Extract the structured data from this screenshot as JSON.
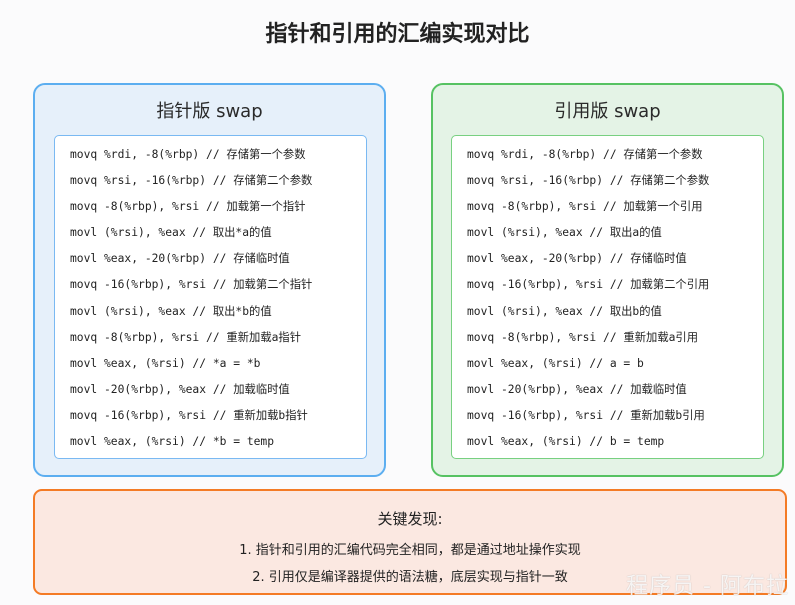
{
  "title": "指针和引用的汇编实现对比",
  "pointer_panel": {
    "title": "指针版 swap",
    "lines": [
      "movq %rdi, -8(%rbp) // 存储第一个参数",
      "movq %rsi, -16(%rbp) // 存储第二个参数",
      "movq -8(%rbp), %rsi // 加载第一个指针",
      "movl (%rsi), %eax // 取出*a的值",
      "movl %eax, -20(%rbp) // 存储临时值",
      "movq -16(%rbp), %rsi // 加载第二个指针",
      "movl (%rsi), %eax // 取出*b的值",
      "movq -8(%rbp), %rsi // 重新加载a指针",
      "movl %eax, (%rsi) // *a = *b",
      "movl -20(%rbp), %eax // 加载临时值",
      "movq -16(%rbp), %rsi // 重新加载b指针",
      "movl %eax, (%rsi) // *b = temp"
    ]
  },
  "reference_panel": {
    "title": "引用版 swap",
    "lines": [
      "movq %rdi, -8(%rbp) // 存储第一个参数",
      "movq %rsi, -16(%rbp) // 存储第二个参数",
      "movq -8(%rbp), %rsi // 加载第一个引用",
      "movl (%rsi), %eax // 取出a的值",
      "movl %eax, -20(%rbp) // 存储临时值",
      "movq -16(%rbp), %rsi // 加载第二个引用",
      "movl (%rsi), %eax // 取出b的值",
      "movq -8(%rbp), %rsi // 重新加载a引用",
      "movl %eax, (%rsi) // a = b",
      "movl -20(%rbp), %eax // 加载临时值",
      "movq -16(%rbp), %rsi // 重新加载b引用",
      "movl %eax, (%rsi) // b = temp"
    ]
  },
  "findings": {
    "title": "关键发现:",
    "items": [
      "1. 指针和引用的汇编代码完全相同，都是通过地址操作实现",
      "2. 引用仅是编译器提供的语法糖，底层实现与指针一致"
    ]
  },
  "watermark": "程序员 - 阿布拉",
  "colors": {
    "pointer_accent": "#5caef0",
    "reference_accent": "#56c262",
    "findings_accent": "#f47b25"
  }
}
